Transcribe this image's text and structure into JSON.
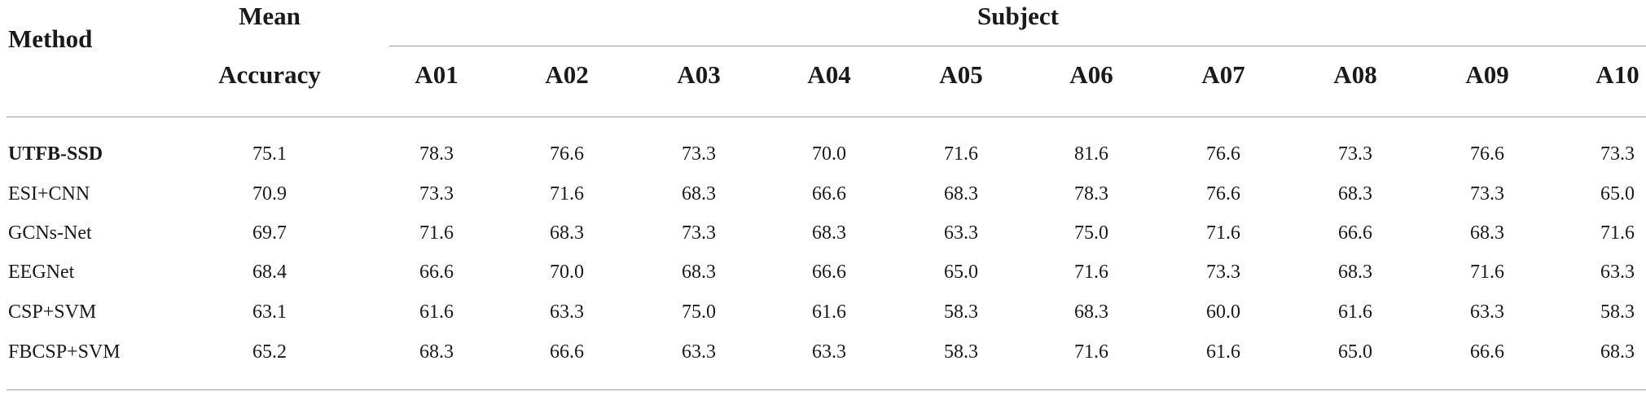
{
  "header": {
    "method": "Method",
    "mean_accuracy_line1": "Mean",
    "mean_accuracy_line2": "Accuracy",
    "subject": "Subject",
    "subjects": [
      "A01",
      "A02",
      "A03",
      "A04",
      "A05",
      "A06",
      "A07",
      "A08",
      "A09",
      "A10"
    ]
  },
  "rows": [
    {
      "method": "UTFB-SSD",
      "bold": true,
      "mean": "75.1",
      "values": [
        "78.3",
        "76.6",
        "73.3",
        "70.0",
        "71.6",
        "81.6",
        "76.6",
        "73.3",
        "76.6",
        "73.3"
      ]
    },
    {
      "method": "ESI+CNN",
      "bold": false,
      "mean": "70.9",
      "values": [
        "73.3",
        "71.6",
        "68.3",
        "66.6",
        "68.3",
        "78.3",
        "76.6",
        "68.3",
        "73.3",
        "65.0"
      ]
    },
    {
      "method": "GCNs-Net",
      "bold": false,
      "mean": "69.7",
      "values": [
        "71.6",
        "68.3",
        "73.3",
        "68.3",
        "63.3",
        "75.0",
        "71.6",
        "66.6",
        "68.3",
        "71.6"
      ]
    },
    {
      "method": "EEGNet",
      "bold": false,
      "mean": "68.4",
      "values": [
        "66.6",
        "70.0",
        "68.3",
        "66.6",
        "65.0",
        "71.6",
        "73.3",
        "68.3",
        "71.6",
        "63.3"
      ]
    },
    {
      "method": "CSP+SVM",
      "bold": false,
      "mean": "63.1",
      "values": [
        "61.6",
        "63.3",
        "75.0",
        "61.6",
        "58.3",
        "68.3",
        "60.0",
        "61.6",
        "63.3",
        "58.3"
      ]
    },
    {
      "method": "FBCSP+SVM",
      "bold": false,
      "mean": "65.2",
      "values": [
        "68.3",
        "66.6",
        "63.3",
        "63.3",
        "58.3",
        "71.6",
        "61.6",
        "65.0",
        "66.6",
        "68.3"
      ]
    }
  ]
}
